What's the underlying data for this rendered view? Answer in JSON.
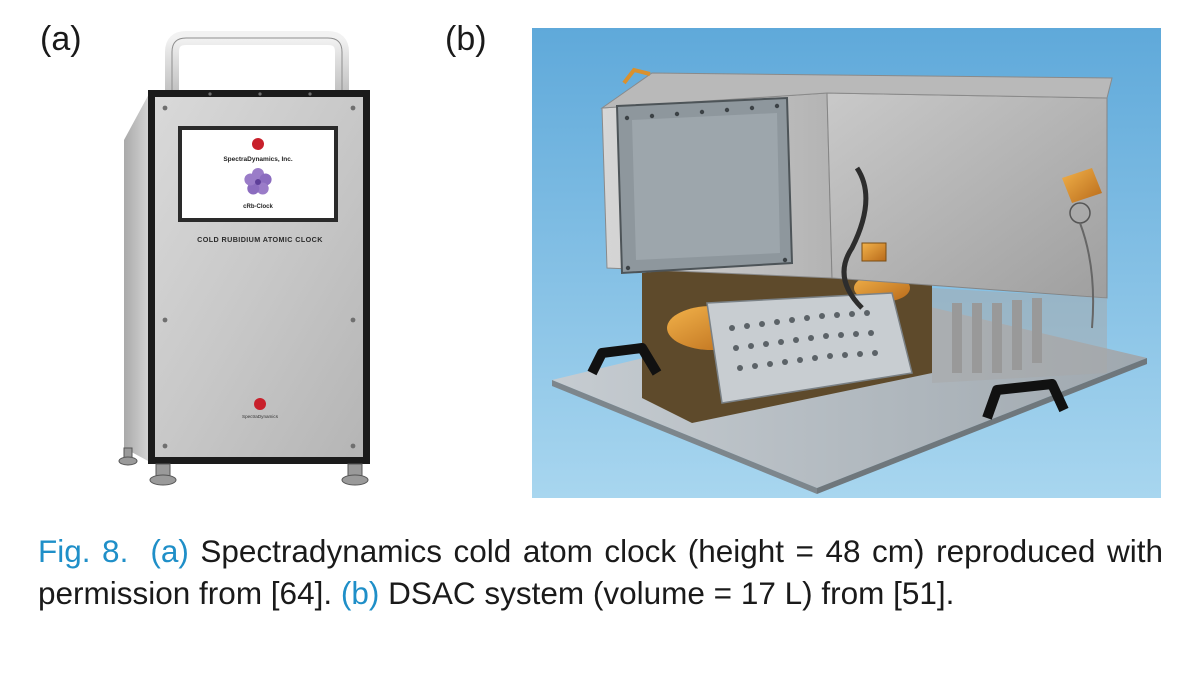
{
  "figure": {
    "panel_a": {
      "label": "(a)",
      "device_screen_company": "SpectraDynamics, Inc.",
      "device_screen_product": "cRb-Clock",
      "device_front_title": "COLD RUBIDIUM ATOMIC CLOCK",
      "device_badge": "SpectraDynamics"
    },
    "panel_b": {
      "label": "(b)"
    },
    "caption": {
      "fig_number": "Fig. 8.",
      "part_a_tag": "(a)",
      "part_a_text": " Spectradynamics cold atom clock (height = 48 cm) reproduced with permission from [64]. ",
      "part_b_tag": "(b)",
      "part_b_text": " DSAC system (volume = 17 L) from [51]."
    }
  },
  "colors": {
    "caption_blue": "#1f8fc8",
    "photo_b_background": "#7cc0e4",
    "cabinet_body": "#c9c9c9",
    "gold_foil": "#d9912e"
  }
}
